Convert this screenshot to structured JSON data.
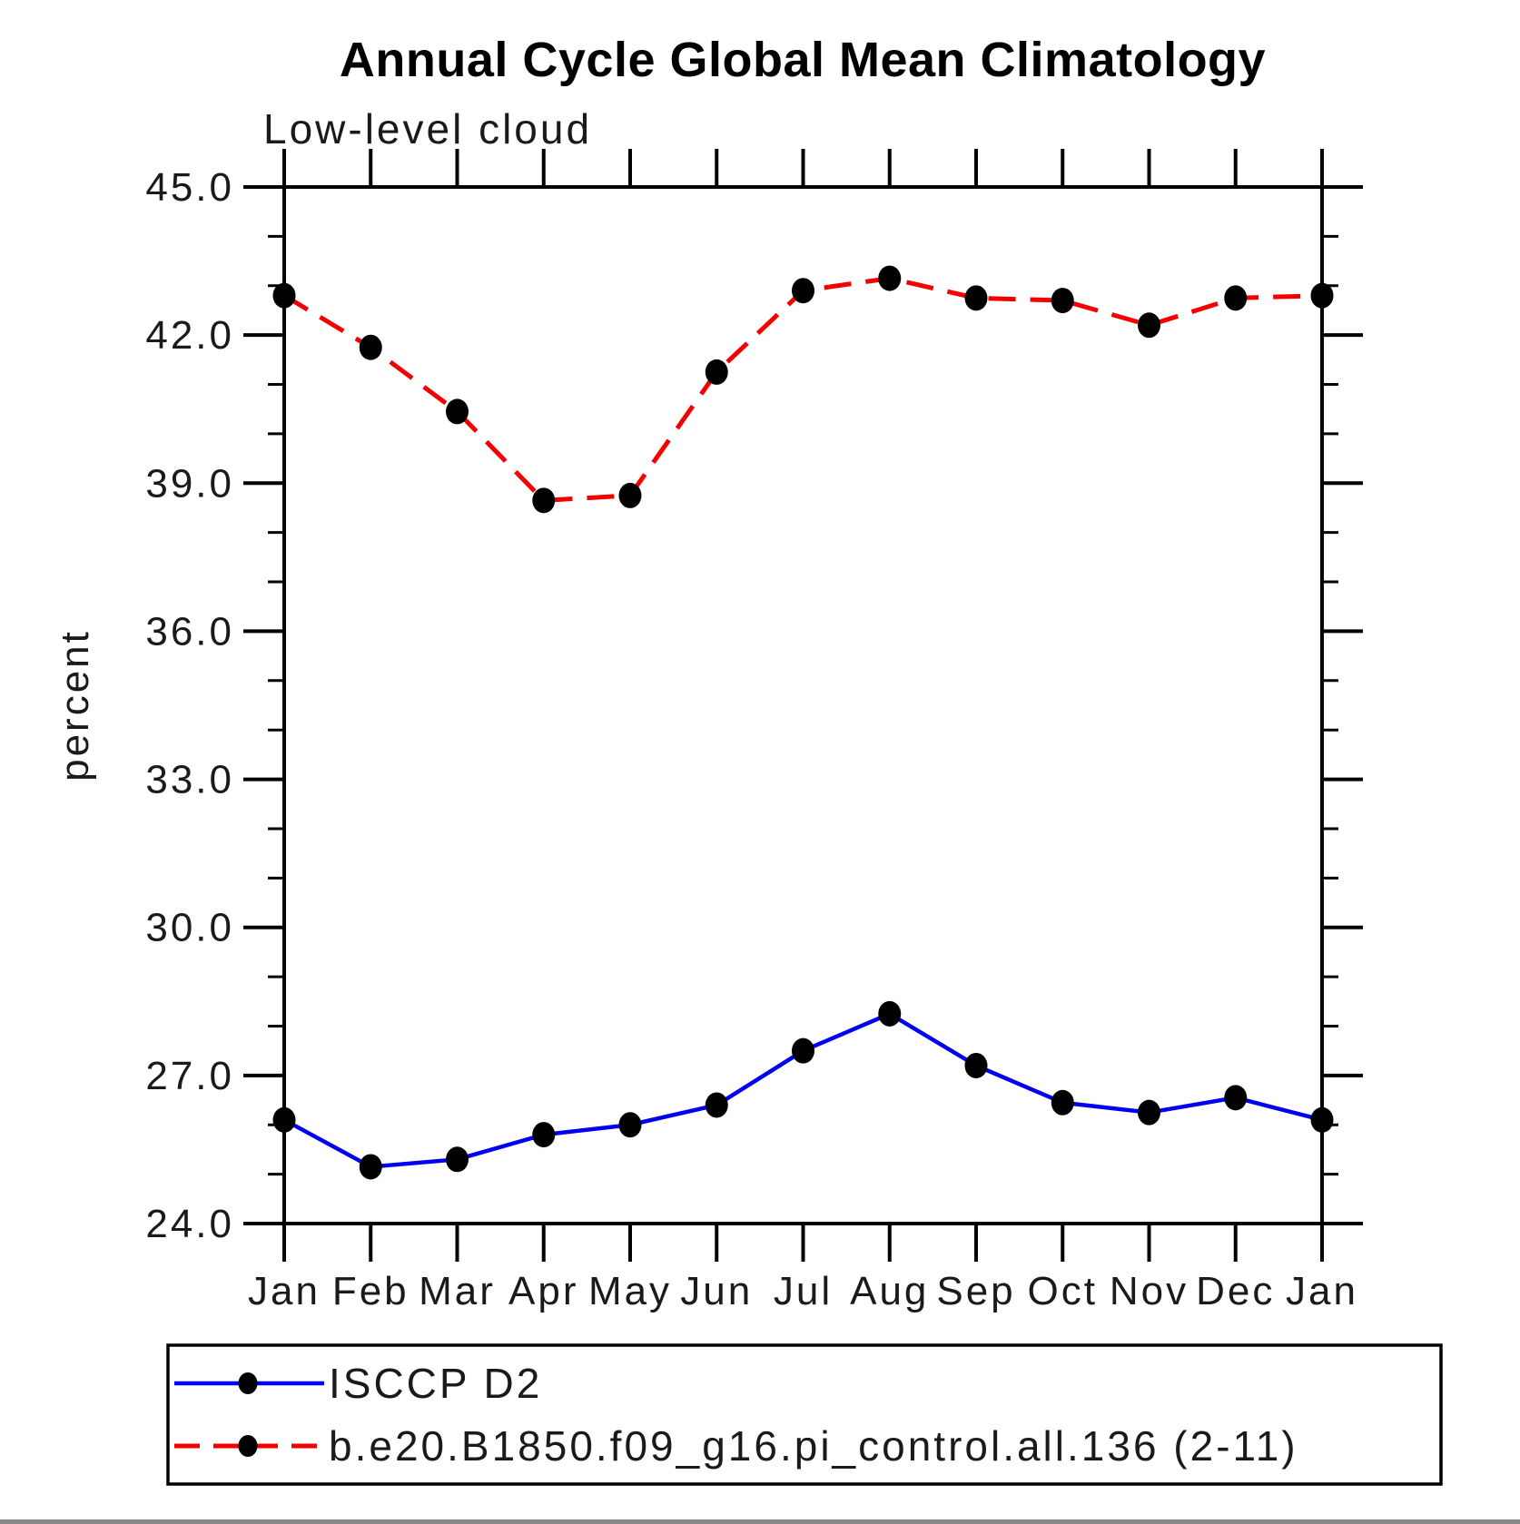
{
  "page": {
    "background_color": "#ffffff",
    "text_color": "#1a1a1a"
  },
  "chart_data": {
    "type": "line",
    "title": "Annual Cycle Global Mean Climatology",
    "subtitle": "Low-level cloud",
    "ylabel": "percent",
    "xlabel": "",
    "categories": [
      "Jan",
      "Feb",
      "Mar",
      "Apr",
      "May",
      "Jun",
      "Jul",
      "Aug",
      "Sep",
      "Oct",
      "Nov",
      "Dec",
      "Jan"
    ],
    "ylim": [
      24.0,
      45.0
    ],
    "ytick_major_step": 3.0,
    "ytick_minor_step": 1.0,
    "ytick_major_labels": [
      "45.0",
      "42.0",
      "39.0",
      "36.0",
      "33.0",
      "30.0",
      "27.0",
      "24.0"
    ],
    "grid": false,
    "legend_position": "bottom-left box",
    "marker": {
      "shape": "filled-circle",
      "color": "#000000"
    },
    "series": [
      {
        "name": "ISCCP D2",
        "color": "#0000f0",
        "line_style": "solid",
        "values": [
          26.1,
          25.15,
          25.3,
          25.8,
          26.0,
          26.4,
          27.5,
          28.25,
          27.2,
          26.45,
          26.25,
          26.55,
          26.1
        ]
      },
      {
        "name": "b.e20.B1850.f09_g16.pi_control.all.136 (2-11)",
        "color": "#f40000",
        "line_style": "dashed",
        "values": [
          42.8,
          41.75,
          40.45,
          38.65,
          38.75,
          41.25,
          42.9,
          43.15,
          42.75,
          42.7,
          42.2,
          42.75,
          42.8
        ]
      }
    ]
  }
}
